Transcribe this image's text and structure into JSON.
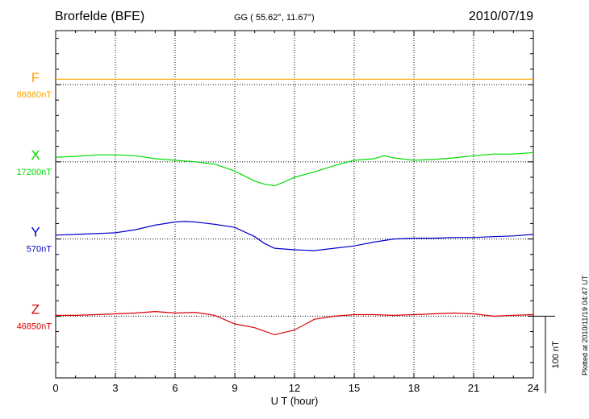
{
  "header": {
    "station": "Brorfelde (BFE)",
    "coords": "GG ( 55.62°,  11.67°)",
    "date": "2010/07/19"
  },
  "footer": {
    "plotted": "Plotted at 2010/11/19 04:47 UT"
  },
  "chart_data": {
    "type": "line",
    "title": "Brorfelde (BFE)",
    "xlabel": "U T (hour)",
    "ylabel": "",
    "xlim": [
      0,
      24
    ],
    "xticks": [
      "0",
      "3",
      "6",
      "9",
      "12",
      "15",
      "18",
      "21",
      "24"
    ],
    "ylim": [
      -80,
      370
    ],
    "scale_label": "100 nT",
    "grid": true,
    "series": [
      {
        "name": "F",
        "baseline_label": "88880nT",
        "color": "#ffa500",
        "offset": 300,
        "x": [
          0,
          24
        ],
        "values": [
          7,
          7
        ]
      },
      {
        "name": "X",
        "baseline_label": "17200nT",
        "color": "#00dd00",
        "offset": 200,
        "x": [
          0,
          1,
          2,
          3,
          4,
          5,
          6,
          7,
          8,
          9,
          10,
          10.5,
          11,
          11.5,
          12,
          13,
          14,
          15,
          16,
          16.5,
          17,
          18,
          19,
          20,
          21,
          22,
          23,
          24
        ],
        "values": [
          6,
          7,
          9,
          9,
          8,
          4,
          2,
          0,
          -3,
          -12,
          -25,
          -29,
          -31,
          -26,
          -20,
          -13,
          -5,
          2,
          4,
          8,
          5,
          2,
          3,
          5,
          8,
          10,
          10,
          12
        ]
      },
      {
        "name": "Y",
        "baseline_label": "570nT",
        "color": "#0000cc",
        "offset": 100,
        "x": [
          0,
          1,
          2,
          3,
          4,
          5,
          6,
          6.5,
          7,
          8,
          9,
          10,
          10.5,
          11,
          12,
          13,
          14,
          15,
          16,
          17,
          18,
          19,
          20,
          21,
          22,
          23,
          24
        ],
        "values": [
          5,
          6,
          7,
          8,
          12,
          18,
          22,
          23,
          22,
          19,
          15,
          3,
          -6,
          -12,
          -14,
          -15,
          -12,
          -9,
          -4,
          0,
          1,
          1,
          2,
          2,
          3,
          4,
          6
        ]
      },
      {
        "name": "Z",
        "baseline_label": "46850nT",
        "color": "#dd0000",
        "offset": 0,
        "x": [
          0,
          1,
          2,
          3,
          4,
          5,
          6,
          7,
          8,
          9,
          10,
          11,
          12,
          13,
          14,
          15,
          16,
          17,
          18,
          19,
          20,
          21,
          22,
          23,
          24
        ],
        "values": [
          1,
          1,
          2,
          3,
          4,
          6,
          4,
          5,
          1,
          -10,
          -15,
          -24,
          -18,
          -4,
          0,
          2,
          2,
          1,
          2,
          3,
          4,
          3,
          0,
          1,
          2
        ]
      }
    ]
  }
}
